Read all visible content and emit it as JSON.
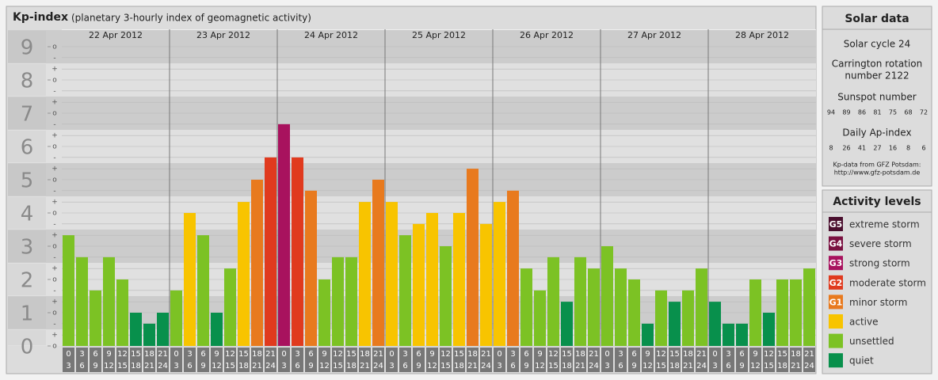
{
  "chart_data": {
    "type": "bar",
    "title": "Kp-index",
    "subtitle": "(planetary 3-hourly index of geomagnetic activity)",
    "ylim": [
      0,
      9.5
    ],
    "yticks": [
      0,
      1,
      2,
      3,
      4,
      5,
      6,
      7,
      8,
      9
    ],
    "minor_ticks": [
      {
        "value": 0,
        "label": "o"
      },
      {
        "value": 0.33,
        "label": "+"
      },
      {
        "value": 0.67,
        "label": "-"
      },
      {
        "value": 1,
        "label": "o"
      },
      {
        "value": 1.33,
        "label": "+"
      },
      {
        "value": 1.67,
        "label": "-"
      },
      {
        "value": 2,
        "label": "o"
      },
      {
        "value": 2.33,
        "label": "+"
      },
      {
        "value": 2.67,
        "label": "-"
      },
      {
        "value": 3,
        "label": "o"
      },
      {
        "value": 3.33,
        "label": "+"
      },
      {
        "value": 3.67,
        "label": "-"
      },
      {
        "value": 4,
        "label": "o"
      },
      {
        "value": 4.33,
        "label": "+"
      },
      {
        "value": 4.67,
        "label": "-"
      },
      {
        "value": 5,
        "label": "o"
      },
      {
        "value": 5.33,
        "label": "+"
      },
      {
        "value": 5.67,
        "label": "-"
      },
      {
        "value": 6,
        "label": "o"
      },
      {
        "value": 6.33,
        "label": "+"
      },
      {
        "value": 6.67,
        "label": "-"
      },
      {
        "value": 7,
        "label": "o"
      },
      {
        "value": 7.33,
        "label": "+"
      },
      {
        "value": 7.67,
        "label": "-"
      },
      {
        "value": 8,
        "label": "o"
      },
      {
        "value": 8.33,
        "label": "+"
      },
      {
        "value": 8.67,
        "label": "-"
      },
      {
        "value": 9,
        "label": "o"
      }
    ],
    "hour_starts": [
      "0",
      "3",
      "6",
      "9",
      "12",
      "15",
      "18",
      "21"
    ],
    "hour_ends": [
      "3",
      "6",
      "9",
      "12",
      "15",
      "18",
      "21",
      "24"
    ],
    "days": [
      {
        "label": "22 Apr 2012",
        "values": [
          3.33,
          2.67,
          1.67,
          2.67,
          2,
          1,
          0.67,
          1
        ],
        "colors": [
          "#7cc224",
          "#7cc224",
          "#7cc224",
          "#7cc224",
          "#7cc224",
          "#08904c",
          "#08904c",
          "#08904c"
        ]
      },
      {
        "label": "23 Apr 2012",
        "values": [
          1.67,
          4,
          3.33,
          1,
          2.33,
          4.33,
          5,
          5.67
        ],
        "colors": [
          "#7cc224",
          "#f8c400",
          "#7cc224",
          "#08904c",
          "#7cc224",
          "#f8c400",
          "#e87a1e",
          "#e03a1e"
        ]
      },
      {
        "label": "24 Apr 2012",
        "values": [
          6.67,
          5.67,
          4.67,
          2,
          2.67,
          2.67,
          4.33,
          5
        ],
        "colors": [
          "#a8125e",
          "#e03a1e",
          "#e87a1e",
          "#7cc224",
          "#7cc224",
          "#7cc224",
          "#f8c400",
          "#e87a1e"
        ]
      },
      {
        "label": "25 Apr 2012",
        "values": [
          4.33,
          3.33,
          3.67,
          4,
          3,
          4,
          5.33,
          3.67
        ],
        "colors": [
          "#f8c400",
          "#7cc224",
          "#f8c400",
          "#f8c400",
          "#7cc224",
          "#f8c400",
          "#e87a1e",
          "#f8c400"
        ]
      },
      {
        "label": "26 Apr 2012",
        "values": [
          4.33,
          4.67,
          2.33,
          1.67,
          2.67,
          1.33,
          2.67,
          2.33
        ],
        "colors": [
          "#f8c400",
          "#e87a1e",
          "#7cc224",
          "#7cc224",
          "#7cc224",
          "#08904c",
          "#7cc224",
          "#7cc224"
        ]
      },
      {
        "label": "27 Apr 2012",
        "values": [
          3,
          2.33,
          2,
          0.67,
          1.67,
          1.33,
          1.67,
          2.33
        ],
        "colors": [
          "#7cc224",
          "#7cc224",
          "#7cc224",
          "#08904c",
          "#7cc224",
          "#08904c",
          "#7cc224",
          "#7cc224"
        ]
      },
      {
        "label": "28 Apr 2012",
        "values": [
          1.33,
          0.67,
          0.67,
          2,
          1,
          2,
          2,
          2.33
        ],
        "colors": [
          "#08904c",
          "#08904c",
          "#08904c",
          "#7cc224",
          "#08904c",
          "#7cc224",
          "#7cc224",
          "#7cc224"
        ]
      }
    ]
  },
  "solar_data": {
    "title": "Solar data",
    "cycle": "Solar cycle 24",
    "carrington": [
      "Carrington rotation",
      "number 2122"
    ],
    "sunspot_title": "Sunspot number",
    "sunspot": [
      94,
      89,
      86,
      81,
      75,
      68,
      72
    ],
    "ap_title": "Daily Ap-index",
    "ap": [
      8,
      26,
      41,
      27,
      16,
      8,
      6
    ],
    "source": [
      "Kp-data from GFZ Potsdam:",
      "http://www.gfz-potsdam.de"
    ]
  },
  "activity_levels": {
    "title": "Activity levels",
    "items": [
      {
        "badge": "G5",
        "name": "extreme storm",
        "color": "#4a0f2e"
      },
      {
        "badge": "G4",
        "name": "severe storm",
        "color": "#7a1040"
      },
      {
        "badge": "G3",
        "name": "strong storm",
        "color": "#a8125e"
      },
      {
        "badge": "G2",
        "name": "moderate storm",
        "color": "#e03a1e"
      },
      {
        "badge": "G1",
        "name": "minor storm",
        "color": "#e87a1e"
      },
      {
        "name": "active",
        "color": "#f8c400"
      },
      {
        "name": "unsettled",
        "color": "#7cc224"
      },
      {
        "name": "quiet",
        "color": "#08904c"
      }
    ]
  }
}
